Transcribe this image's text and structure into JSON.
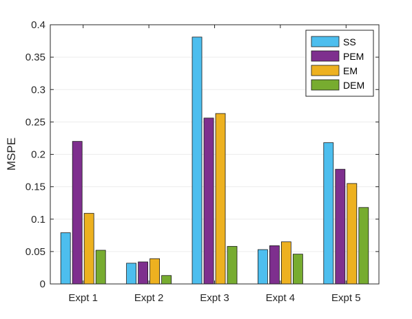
{
  "chart_data": {
    "type": "bar",
    "title": "",
    "xlabel": "",
    "ylabel": "MSPE",
    "ylim": [
      0,
      0.4
    ],
    "yticks": [
      0,
      0.05,
      0.1,
      0.15,
      0.2,
      0.25,
      0.3,
      0.35,
      0.4
    ],
    "ytick_labels": [
      "0",
      "0.05",
      "0.1",
      "0.15",
      "0.2",
      "0.25",
      "0.3",
      "0.35",
      "0.4"
    ],
    "grid": true,
    "legend_position": "top-right",
    "categories": [
      "Expt 1",
      "Expt 2",
      "Expt 3",
      "Expt 4",
      "Expt 5"
    ],
    "series": [
      {
        "name": "SS",
        "color": "#4DBEEE",
        "values": [
          0.079,
          0.032,
          0.381,
          0.053,
          0.218
        ]
      },
      {
        "name": "PEM",
        "color": "#7E2F8E",
        "values": [
          0.22,
          0.034,
          0.256,
          0.059,
          0.177
        ]
      },
      {
        "name": "EM",
        "color": "#EDB120",
        "values": [
          0.109,
          0.039,
          0.263,
          0.065,
          0.155
        ]
      },
      {
        "name": "DEM",
        "color": "#77AC30",
        "values": [
          0.052,
          0.013,
          0.058,
          0.046,
          0.118
        ]
      }
    ]
  }
}
